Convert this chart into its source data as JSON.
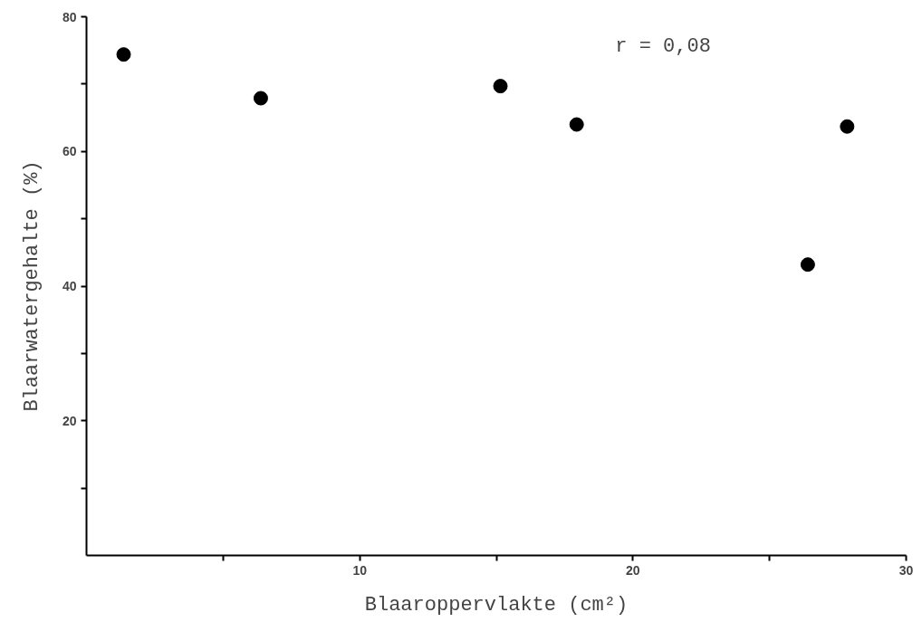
{
  "chart_data": {
    "type": "scatter",
    "xlabel": "Blaaroppervlakte (cm²)",
    "ylabel": "Blaarwatergehalte (%)",
    "x": [
      1.36,
      6.38,
      15.15,
      17.94,
      26.4,
      27.84
    ],
    "values": [
      74.4,
      67.9,
      69.7,
      64.0,
      43.2,
      63.7
    ],
    "color": "#000000",
    "marker": "circle",
    "xlim": [
      0,
      30
    ],
    "ylim": [
      0,
      80
    ],
    "xticks": [
      {
        "value": 5,
        "label": null
      },
      10,
      {
        "value": 15,
        "label": null
      },
      20,
      {
        "value": 25,
        "label": null
      },
      30
    ],
    "yticks": [
      {
        "value": 10,
        "label": null
      },
      20,
      {
        "value": 30,
        "label": null
      },
      40,
      {
        "value": 50,
        "label": null
      },
      60,
      {
        "value": 70,
        "label": null
      },
      80
    ],
    "annotations": [
      "r = 0,08"
    ]
  }
}
